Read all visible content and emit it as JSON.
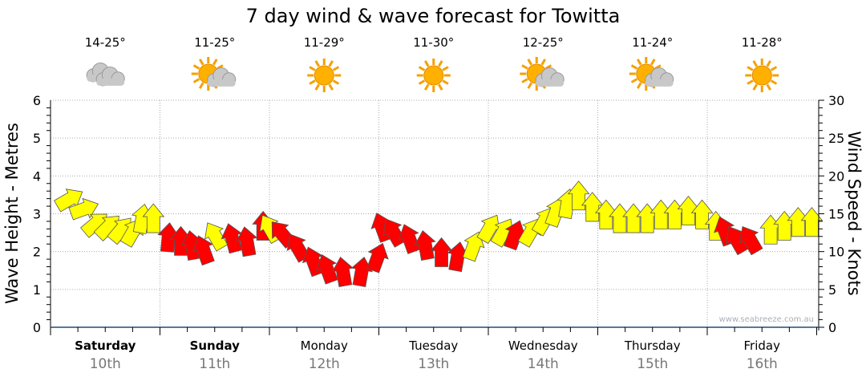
{
  "chart_data": {
    "type": "scatter",
    "title": "7 day wind & wave forecast for Towitta",
    "ylabel": "Wave Height - Metres",
    "y2label": "Wind Speed - Knots",
    "ylim": [
      0,
      6
    ],
    "y2lim": [
      0,
      30
    ],
    "yticks": [
      "0",
      "1",
      "2",
      "3",
      "4",
      "5",
      "6"
    ],
    "y2ticks": [
      "0",
      "5",
      "10",
      "15",
      "20",
      "25",
      "30"
    ],
    "watermark": "www.seabreeze.com.au",
    "days": [
      {
        "day": "Saturday",
        "date": "10th",
        "bold": true,
        "temp": "14-25°",
        "icon": "cloudy"
      },
      {
        "day": "Sunday",
        "date": "11th",
        "bold": true,
        "temp": "11-25°",
        "icon": "partly-sunny"
      },
      {
        "day": "Monday",
        "date": "12th",
        "bold": false,
        "temp": "11-29°",
        "icon": "sunny"
      },
      {
        "day": "Tuesday",
        "date": "13th",
        "bold": false,
        "temp": "11-30°",
        "icon": "sunny"
      },
      {
        "day": "Wednesday",
        "date": "14th",
        "bold": false,
        "temp": "12-25°",
        "icon": "partly-sunny"
      },
      {
        "day": "Thursday",
        "date": "15th",
        "bold": false,
        "temp": "11-24°",
        "icon": "partly-sunny"
      },
      {
        "day": "Friday",
        "date": "16th",
        "bold": false,
        "temp": "11-28°",
        "icon": "sunny"
      }
    ],
    "colors": {
      "moderate": "#ffff00",
      "strong": "#ff0000"
    },
    "wave_height": [
      3.2,
      3.0,
      2.5,
      2.4,
      2.3,
      2.2,
      2.5,
      2.5,
      2.0,
      1.9,
      1.8,
      1.7,
      2.1,
      2.0,
      1.9,
      2.3,
      2.3,
      2.2,
      1.8,
      1.4,
      1.2,
      1.1,
      1.1,
      1.5,
      2.3,
      2.2,
      2.0,
      1.8,
      1.6,
      1.5,
      1.8,
      2.3,
      2.2,
      2.1,
      2.2,
      2.5,
      2.7,
      2.9,
      3.1,
      2.8,
      2.6,
      2.5,
      2.5,
      2.5,
      2.6,
      2.6,
      2.7,
      2.6,
      2.3,
      2.2,
      2.0,
      2.0,
      2.2,
      2.3,
      2.4,
      2.4
    ],
    "wind_strong": [
      0,
      0,
      0,
      0,
      0,
      0,
      0,
      0,
      1,
      1,
      1,
      1,
      0,
      1,
      1,
      1,
      0,
      1,
      1,
      1,
      1,
      1,
      1,
      1,
      1,
      1,
      1,
      1,
      1,
      1,
      0,
      0,
      0,
      1,
      0,
      0,
      0,
      0,
      0,
      0,
      0,
      0,
      0,
      0,
      0,
      0,
      0,
      0,
      0,
      1,
      1,
      1,
      0,
      0,
      0,
      0
    ],
    "arrow_dir_deg": [
      60,
      70,
      50,
      45,
      40,
      30,
      10,
      0,
      5,
      0,
      -10,
      -20,
      -30,
      -15,
      -10,
      0,
      -30,
      -40,
      -30,
      -20,
      -20,
      -10,
      10,
      20,
      -20,
      -30,
      -20,
      -10,
      0,
      10,
      20,
      30,
      30,
      20,
      30,
      30,
      20,
      10,
      0,
      0,
      0,
      0,
      0,
      0,
      0,
      0,
      0,
      0,
      0,
      -20,
      -30,
      -30,
      0,
      0,
      0,
      0
    ]
  }
}
